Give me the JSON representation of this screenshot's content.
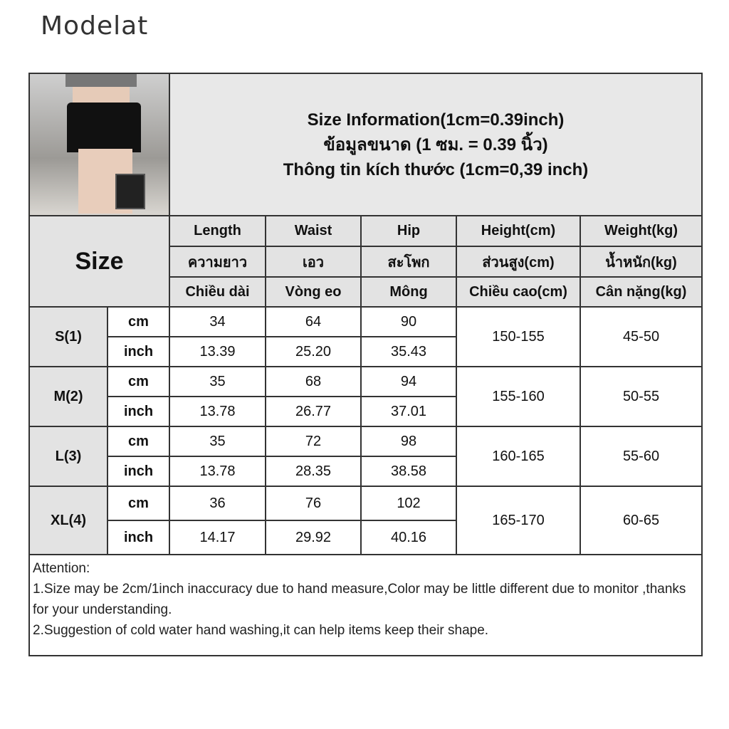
{
  "brand": "Modelat",
  "title": [
    "Size Information(1cm=0.39inch)",
    "ข้อมูลขนาด (1 ซม. = 0.39 นิ้ว)",
    "Thông tin kích thước (1cm=0,39 inch)"
  ],
  "size_label": "Size",
  "headers": [
    [
      "Length",
      "Waist",
      "Hip",
      "Height(cm)",
      "Weight(kg)"
    ],
    [
      "ความยาว",
      "เอว",
      "สะโพก",
      "ส่วนสูง(cm)",
      "น้ำหนัก(kg)"
    ],
    [
      "Chiều dài",
      "Vòng eo",
      "Mông",
      "Chiều cao(cm)",
      "Cân nặng(kg)"
    ]
  ],
  "sizes": [
    {
      "name": "S(1)",
      "cm": {
        "unit": "cm",
        "values": [
          "34",
          "64",
          "90"
        ]
      },
      "inch": {
        "unit": "inch",
        "values": [
          "13.39",
          "25.20",
          "35.43"
        ]
      },
      "height": "150-155",
      "weight": "45-50"
    },
    {
      "name": "M(2)",
      "cm": {
        "unit": "cm",
        "values": [
          "35",
          "68",
          "94"
        ]
      },
      "inch": {
        "unit": "inch",
        "values": [
          "13.78",
          "26.77",
          "37.01"
        ]
      },
      "height": "155-160",
      "weight": "50-55"
    },
    {
      "name": "L(3)",
      "cm": {
        "unit": "cm",
        "values": [
          "35",
          "72",
          "98"
        ]
      },
      "inch": {
        "unit": "inch",
        "values": [
          "13.78",
          "28.35",
          "38.58"
        ]
      },
      "height": "160-165",
      "weight": "55-60"
    },
    {
      "name": "XL(4)",
      "cm": {
        "unit": "cm",
        "values": [
          "36",
          "76",
          "102"
        ]
      },
      "inch": {
        "unit": "inch",
        "values": [
          "14.17",
          "29.92",
          "40.16"
        ]
      },
      "height": "165-170",
      "weight": "60-65"
    }
  ],
  "attention": [
    "Attention:",
    "1.Size may be 2cm/1inch inaccuracy due to hand measure,Color may be little different due to monitor ,thanks for your understanding.",
    "2.Suggestion of cold water hand washing,it can help items keep their shape."
  ]
}
